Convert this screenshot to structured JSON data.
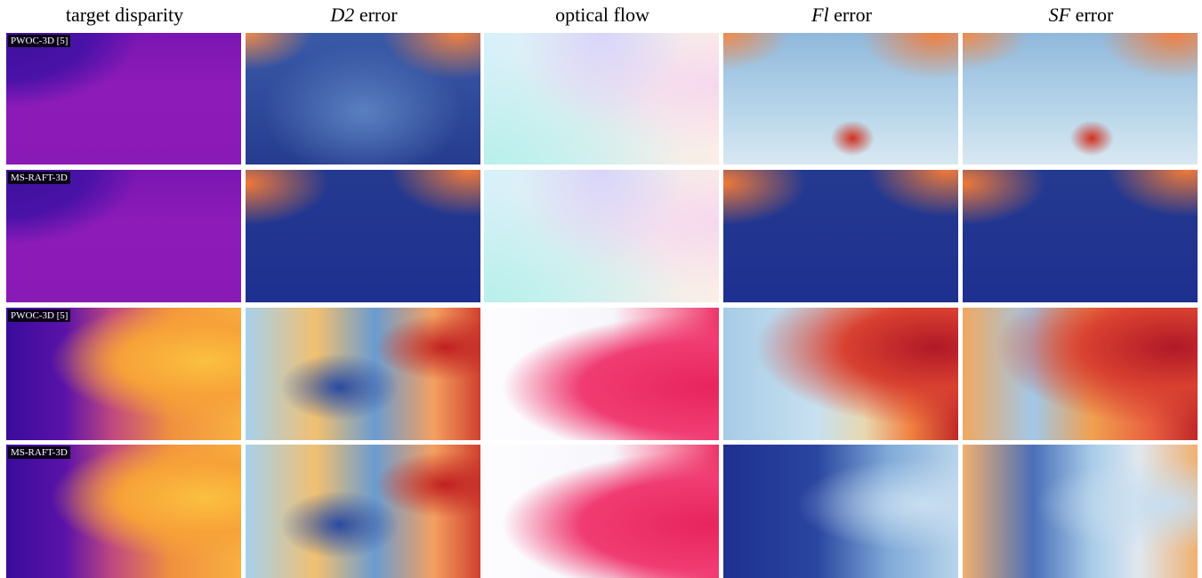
{
  "headers": [
    {
      "text": "target disparity"
    },
    {
      "em": "D2",
      "text": " error"
    },
    {
      "text": "optical flow"
    },
    {
      "em": "Fl",
      "text": " error"
    },
    {
      "em": "SF",
      "text": " error"
    }
  ],
  "rows": [
    {
      "label": "PWOC-3D [5]"
    },
    {
      "label": "MS-RAFT-3D"
    },
    {
      "label": "PWOC-3D [5]"
    },
    {
      "label": "MS-RAFT-3D"
    }
  ]
}
